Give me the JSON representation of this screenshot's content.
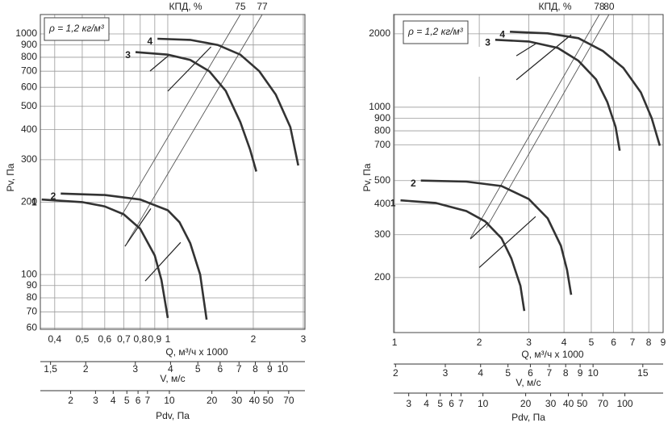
{
  "chart_data": [
    {
      "type": "line",
      "xscale": "log",
      "yscale": "log",
      "grid": true,
      "annotation": "ρ = 1,2 кг/м³",
      "ylabel": "Pv, Па",
      "xlabel": "Q, м³/ч x 1000",
      "xlim": [
        0.356,
        3.04
      ],
      "ylim": [
        59.2,
        1204
      ],
      "xticks": [
        {
          "value": 0.4,
          "label": "0,4"
        },
        {
          "value": 0.5,
          "label": "0,5"
        },
        {
          "value": 0.6,
          "label": "0,6"
        },
        {
          "value": 0.7,
          "label": "0,7"
        },
        {
          "value": 0.8,
          "label": "0,8"
        },
        {
          "value": 0.9,
          "label": "0,9"
        },
        1,
        2,
        3
      ],
      "yticks": [
        60,
        70,
        80,
        90,
        100,
        200,
        300,
        400,
        500,
        600,
        700,
        800,
        900,
        1000
      ],
      "series": [
        {
          "name": "1",
          "color": "#333333",
          "x": [
            0.36,
            0.5,
            0.6,
            0.7,
            0.8,
            0.9,
            0.95,
            1.0
          ],
          "values": [
            205,
            200,
            192,
            178,
            155,
            120,
            95,
            66
          ]
        },
        {
          "name": "2",
          "color": "#333333",
          "x": [
            0.42,
            0.6,
            0.8,
            1.0,
            1.1,
            1.2,
            1.3,
            1.37
          ],
          "values": [
            217,
            214,
            205,
            185,
            165,
            135,
            100,
            65
          ]
        },
        {
          "name": "3",
          "color": "#333333",
          "x": [
            0.77,
            1.0,
            1.2,
            1.4,
            1.6,
            1.8,
            1.95,
            2.05
          ],
          "values": [
            840,
            820,
            780,
            700,
            580,
            430,
            330,
            268
          ]
        },
        {
          "name": "4",
          "color": "#333333",
          "x": [
            0.92,
            1.2,
            1.5,
            1.8,
            2.1,
            2.4,
            2.7,
            2.88
          ],
          "values": [
            955,
            945,
            900,
            820,
            700,
            560,
            410,
            284
          ]
        }
      ],
      "efficiency_lines": {
        "label": "КПД, %",
        "lines": [
          {
            "name": "75",
            "x": [
              0.684,
              1.8
            ],
            "values": [
              174,
              1204
            ]
          },
          {
            "name": "77",
            "x": [
              0.72,
              2.15
            ],
            "values": [
              136,
              1204
            ]
          }
        ]
      },
      "marker_lines": [
        {
          "x": [
            0.707,
            0.872
          ],
          "values": [
            131,
            188
          ]
        },
        {
          "x": [
            0.833,
            1.11
          ],
          "values": [
            94,
            136
          ]
        },
        {
          "x": [
            0.866,
            1.013
          ],
          "values": [
            701,
            818
          ]
        },
        {
          "x": [
            1.0,
            1.42
          ],
          "values": [
            578,
            884
          ]
        }
      ],
      "secondary_scales": [
        {
          "label": "V, м/с",
          "lim": [
            1.38,
            12.0
          ],
          "ticks": [
            {
              "value": 1.5,
              "label": "1,5"
            },
            2,
            3,
            4,
            5,
            6,
            7,
            8,
            9,
            10
          ]
        },
        {
          "label": "Pdv, Па",
          "lim": [
            1.22,
            91.2
          ],
          "ticks": [
            2,
            3,
            4,
            5,
            6,
            7,
            10,
            20,
            30,
            40,
            50,
            70
          ]
        }
      ]
    },
    {
      "type": "line",
      "xscale": "log",
      "yscale": "log",
      "grid": true,
      "annotation": "ρ = 1,2 кг/м³",
      "ylabel": "Pv, Па",
      "xlabel": "Q, м³/ч x 1000",
      "xlim": [
        0.993,
        9.0
      ],
      "ylim": [
        119,
        2400
      ],
      "xticks": [
        1,
        2,
        3,
        4,
        5,
        6,
        7,
        8,
        9
      ],
      "yticks": [
        200,
        300,
        400,
        500,
        700,
        800,
        900,
        1000,
        2000
      ],
      "series": [
        {
          "name": "1",
          "color": "#333333",
          "x": [
            1.05,
            1.4,
            1.8,
            2.1,
            2.4,
            2.6,
            2.8,
            2.89
          ],
          "values": [
            415,
            405,
            375,
            340,
            290,
            240,
            185,
            146
          ]
        },
        {
          "name": "2",
          "color": "#333333",
          "x": [
            1.24,
            1.8,
            2.4,
            3.0,
            3.5,
            3.9,
            4.1,
            4.24
          ],
          "values": [
            500,
            495,
            475,
            420,
            350,
            270,
            215,
            170
          ]
        },
        {
          "name": "3",
          "color": "#333333",
          "x": [
            2.28,
            3,
            3.8,
            4.5,
            5.2,
            5.7,
            6.1,
            6.31
          ],
          "values": [
            1890,
            1860,
            1750,
            1550,
            1300,
            1050,
            830,
            663
          ]
        },
        {
          "name": "4",
          "color": "#333333",
          "x": [
            2.57,
            3.5,
            4.5,
            5.5,
            6.5,
            7.5,
            8.2,
            8.76
          ],
          "values": [
            2040,
            2010,
            1920,
            1700,
            1450,
            1150,
            900,
            695
          ]
        }
      ],
      "efficiency_lines": {
        "label": "КПД, %",
        "lines": [
          {
            "name": "78",
            "x": [
              1.859,
              5.34
            ],
            "values": [
              290,
              2400
            ]
          },
          {
            "name": "80",
            "x": [
              2.12,
              5.78
            ],
            "values": [
              320,
              2400
            ]
          }
        ]
      },
      "marker_lines": [
        {
          "x": [
            1.859,
            2.15
          ],
          "values": [
            288,
            337
          ]
        },
        {
          "x": [
            2.0,
            3.17
          ],
          "values": [
            220,
            356
          ]
        },
        {
          "x": [
            2.71,
            3.21
          ],
          "values": [
            1626,
            1837
          ]
        },
        {
          "x": [
            2.71,
            4.24
          ],
          "values": [
            1295,
            1982
          ]
        }
      ],
      "secondary_scales": [
        {
          "label": "V, м/с",
          "lim": [
            1.97,
            17.7
          ],
          "ticks": [
            2,
            3,
            4,
            5,
            6,
            7,
            8,
            9,
            10,
            15
          ]
        },
        {
          "label": "Pdv, Па",
          "lim": [
            2.35,
            186
          ],
          "ticks": [
            3,
            4,
            5,
            6,
            7,
            10,
            20,
            30,
            40,
            50,
            70,
            100
          ]
        }
      ]
    }
  ]
}
